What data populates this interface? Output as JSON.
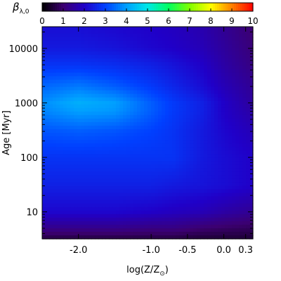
{
  "chart_data": {
    "type": "heatmap",
    "colorbar": {
      "label_main": "β",
      "label_sub": "λ,0",
      "range": [
        0,
        10
      ],
      "ticks": [
        "0",
        "1",
        "2",
        "3",
        "4",
        "5",
        "6",
        "7",
        "8",
        "9",
        "10"
      ],
      "placement": "top"
    },
    "x_axis": {
      "label_main": "log(Z/Z",
      "label_sub": "⊙",
      "label_end": ")",
      "range": [
        -2.5,
        0.4
      ],
      "ticks": [
        {
          "value": -2.0,
          "label": "-2.0"
        },
        {
          "value": -1.0,
          "label": "-1.0"
        },
        {
          "value": -0.5,
          "label": "-0.5"
        },
        {
          "value": 0.0,
          "label": "0.0"
        },
        {
          "value": 0.3,
          "label": "0.3"
        }
      ]
    },
    "y_axis": {
      "label": "Age [Myr]",
      "scale": "log",
      "range": [
        3.2,
        25000
      ],
      "ticks": [
        {
          "value": 10,
          "label": "10"
        },
        {
          "value": 100,
          "label": "100"
        },
        {
          "value": 1000,
          "label": "1000"
        },
        {
          "value": 10000,
          "label": "10000"
        }
      ]
    },
    "z_grid": {
      "x": [
        -2.5,
        -2.0,
        -1.5,
        -1.0,
        -0.7,
        -0.3,
        0.0,
        0.4
      ],
      "y": [
        3.2,
        5,
        10,
        30,
        100,
        300,
        700,
        1000,
        2000,
        5000,
        10000,
        25000
      ],
      "values": [
        [
          0.6,
          0.6,
          0.6,
          0.6,
          0.6,
          0.5,
          0.5,
          0.5
        ],
        [
          1.3,
          1.3,
          1.3,
          1.2,
          1.2,
          1.0,
          0.9,
          0.8
        ],
        [
          2.1,
          2.1,
          2.1,
          2.0,
          1.9,
          1.8,
          1.6,
          1.4
        ],
        [
          2.5,
          2.5,
          2.5,
          2.5,
          2.4,
          2.3,
          2.2,
          2.0
        ],
        [
          2.8,
          2.8,
          2.8,
          2.8,
          2.8,
          2.4,
          2.2,
          2.0
        ],
        [
          3.2,
          3.3,
          3.2,
          3.0,
          2.8,
          2.4,
          2.1,
          1.8
        ],
        [
          3.7,
          4.0,
          3.9,
          3.3,
          2.9,
          2.5,
          2.0,
          1.6
        ],
        [
          3.8,
          4.2,
          4.0,
          3.3,
          2.9,
          2.5,
          2.0,
          1.5
        ],
        [
          3.4,
          3.6,
          3.3,
          2.9,
          2.6,
          2.2,
          1.8,
          1.4
        ],
        [
          2.8,
          2.8,
          2.7,
          2.5,
          2.3,
          2.0,
          1.6,
          1.2
        ],
        [
          2.4,
          2.4,
          2.3,
          2.1,
          2.0,
          1.8,
          1.5,
          1.1
        ],
        [
          2.2,
          2.2,
          2.1,
          2.0,
          1.9,
          1.7,
          1.4,
          1.0
        ]
      ]
    },
    "colormap": [
      "#000000",
      "#3c0070",
      "#2000c8",
      "#0040ff",
      "#00a0ff",
      "#00e8e8",
      "#00ff60",
      "#80ff00",
      "#ffff00",
      "#ff8000",
      "#ff0000"
    ]
  }
}
